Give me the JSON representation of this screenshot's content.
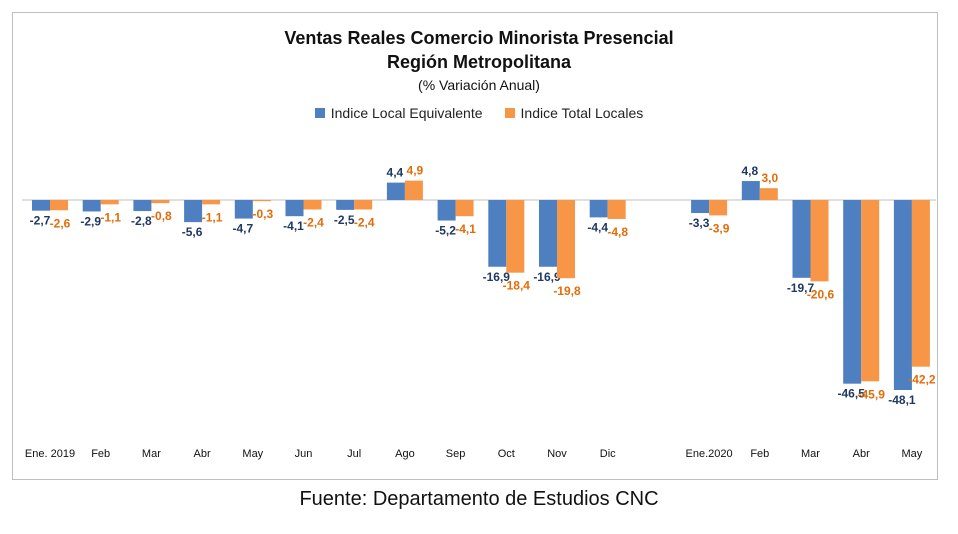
{
  "chart_data": {
    "type": "bar",
    "title": "Ventas Reales Comercio Minorista Presencial",
    "subtitle": "Región Metropolitana",
    "unit_label": "(% Variación Anual)",
    "categories": [
      "Ene. 2019",
      "Feb",
      "Mar",
      "Abr",
      "May",
      "Jun",
      "Jul",
      "Ago",
      "Sep",
      "Oct",
      "Nov",
      "Dic",
      "",
      "Ene.2020",
      "Feb",
      "Mar",
      "Abr",
      "May"
    ],
    "series": [
      {
        "name": "Indice Local Equivalente",
        "color": "#4e7fc0",
        "label_color": "#1f3864",
        "values": [
          -2.7,
          -2.9,
          -2.8,
          -5.6,
          -4.7,
          -4.1,
          -2.5,
          4.4,
          -5.2,
          -16.9,
          -16.9,
          -4.4,
          null,
          -3.3,
          4.8,
          -19.7,
          -46.5,
          -48.1
        ],
        "labels": [
          "-2,7",
          "-2,9",
          "-2,8",
          "-5,6",
          "-4,7",
          "-4,1",
          "-2,5",
          "4,4",
          "-5,2",
          "-16,9",
          "-16,9",
          "-4,4",
          "",
          "-3,3",
          "4,8",
          "-19,7",
          "-46,5",
          "-48,1"
        ]
      },
      {
        "name": "Indice Total Locales",
        "color": "#f79646",
        "label_color": "#e36c09",
        "values": [
          -2.6,
          -1.1,
          -0.8,
          -1.1,
          -0.3,
          -2.4,
          -2.4,
          4.9,
          -4.1,
          -18.4,
          -19.8,
          -4.8,
          null,
          -3.9,
          3.0,
          -20.6,
          -45.9,
          -42.2
        ],
        "labels": [
          "-2,6",
          "-1,1",
          "-0,8",
          "-1,1",
          "-0,3",
          "-2,4",
          "-2,4",
          "4,9",
          "-4,1",
          "-18,4",
          "-19,8",
          "-4,8",
          "",
          "-3,9",
          "3,0",
          "-20,6",
          "-45,9",
          "-42,2"
        ]
      }
    ],
    "ylim": [
      -55,
      10
    ],
    "grid": false,
    "legend_position": "top-center"
  },
  "source": "Fuente: Departamento de Estudios CNC"
}
